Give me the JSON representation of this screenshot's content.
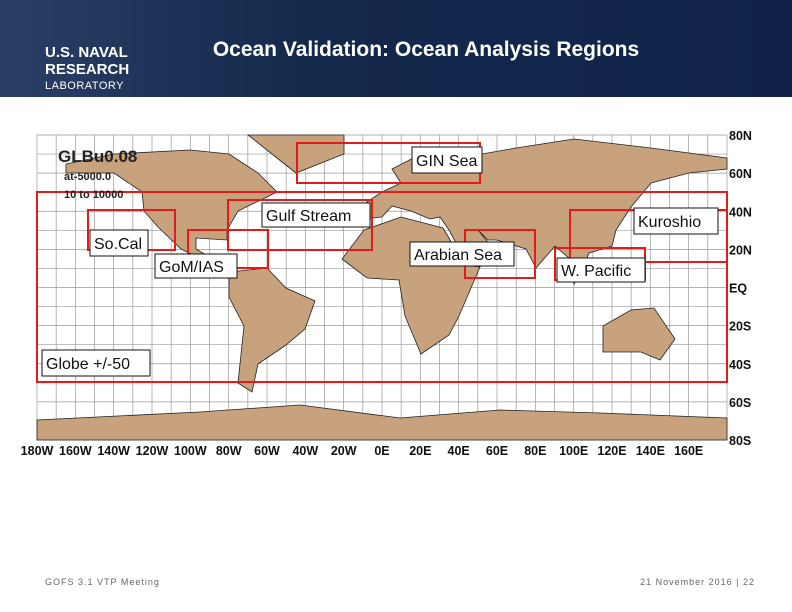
{
  "header": {
    "logo": [
      "U.S. NAVAL",
      "RESEARCH",
      "LABORATORY"
    ],
    "title": "Ocean Validation: Ocean Analysis Regions"
  },
  "map": {
    "model_label": [
      "GLBu0.08",
      "at-5000.0",
      "10 to 10000"
    ],
    "regions": [
      "GIN Sea",
      "Gulf Stream",
      "So.Cal",
      "GoM/IAS",
      "Arabian Sea",
      "W. Pacific",
      "Kuroshio",
      "Globe +/-50"
    ],
    "longitude_labels": [
      "180W",
      "160W",
      "140W",
      "120W",
      "100W",
      "80W",
      "60W",
      "40W",
      "20W",
      "0E",
      "20E",
      "40E",
      "60E",
      "80E",
      "100E",
      "120E",
      "140E",
      "160E"
    ],
    "latitude_labels": [
      "80N",
      "60N",
      "40N",
      "20N",
      "EQ",
      "20S",
      "40S",
      "60S",
      "80S"
    ]
  },
  "footer": {
    "left": "GOFS 3.1 VTP Meeting",
    "right": "21 November 2016 | 22"
  }
}
